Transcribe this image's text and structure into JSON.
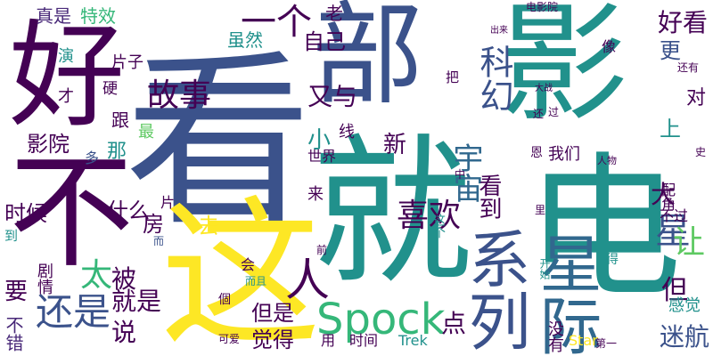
{
  "palette": {
    "purple": "#440154",
    "indigo": "#3b528b",
    "teal": "#21918c",
    "green": "#5ec962",
    "yellow": "#fde725",
    "blue": "#31688e",
    "darkgreen": "#35b779",
    "violet": "#482878"
  },
  "words": [
    "看",
    "就",
    "电",
    "影",
    "好",
    "不",
    "这",
    "部",
    "系列",
    "星际",
    "还是",
    "科幻",
    "宇宙",
    "故事",
    "一个",
    "Spock",
    "喜欢",
    "人",
    "星",
    "让",
    "好看",
    "真是",
    "特效",
    "演",
    "片子",
    "硬",
    "才",
    "最",
    "影院",
    "时候",
    "什么",
    "太",
    "被",
    "就是",
    "要",
    "说",
    "不错",
    "剧情",
    "到",
    "而",
    "房",
    "去",
    "新",
    "小",
    "又与",
    "自己",
    "虽然",
    "老",
    "更",
    "上",
    "对",
    "但",
    "迷航",
    "感觉",
    "不过",
    "配角",
    "大",
    "我们",
    "看到",
    "点",
    "但是",
    "觉得",
    "用",
    "时间",
    "Trek",
    "没有",
    "Star",
    "第一",
    "可爱",
    "会",
    "個",
    "片",
    "来",
    "线",
    "世界",
    "那",
    "跟",
    "多",
    "把",
    "出来",
    "还有",
    "像",
    "电影院",
    "大战",
    "过",
    "还",
    "中",
    "人物",
    "史",
    "开始",
    "得",
    "这个",
    "前",
    "而且",
    "恩",
    "里"
  ]
}
